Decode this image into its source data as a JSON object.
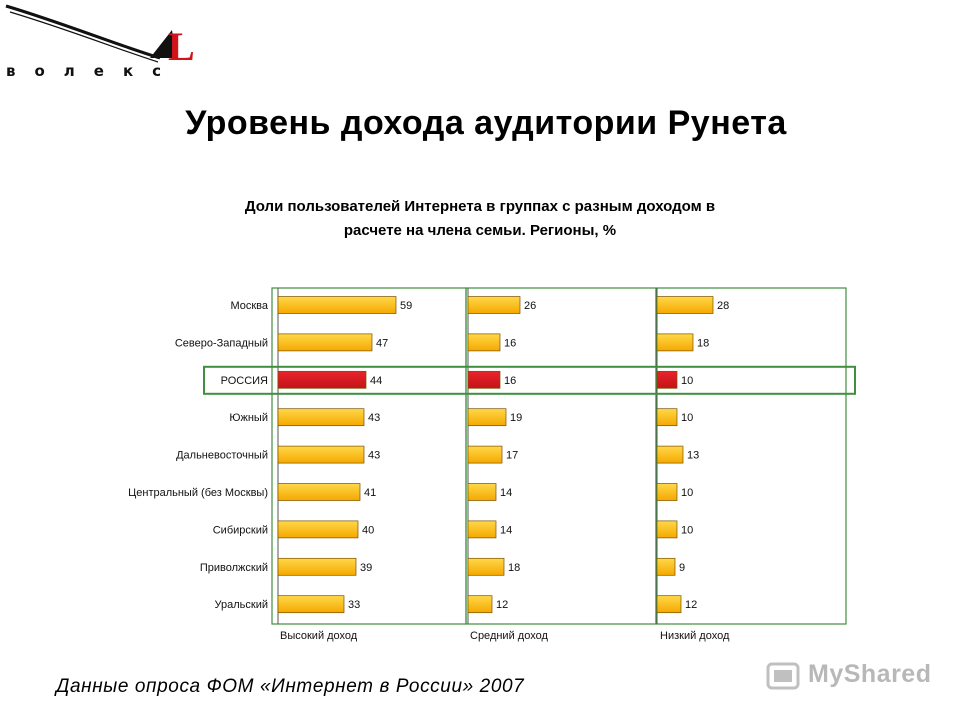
{
  "logo": {
    "text": "волекс",
    "letter": "L"
  },
  "main_title": "Уровень дохода аудитории Рунета",
  "chart_title": [
    "Доли пользователей Интернета в группах с разным доходом в",
    "расчете на члена семьи. Регионы, %"
  ],
  "chart_data": {
    "type": "bar",
    "orientation": "horizontal",
    "categories": [
      "Москва",
      "Северо-Западный",
      "РОССИЯ",
      "Южный",
      "Дальневосточный",
      "Центральный (без Москвы)",
      "Сибирский",
      "Приволжский",
      "Уральский"
    ],
    "highlight_category": "РОССИЯ",
    "series": [
      {
        "name": "Высокий доход",
        "values": [
          59,
          47,
          44,
          43,
          43,
          41,
          40,
          39,
          33
        ]
      },
      {
        "name": "Средний доход",
        "values": [
          26,
          16,
          16,
          19,
          17,
          14,
          14,
          18,
          12
        ]
      },
      {
        "name": "Низкий доход",
        "values": [
          28,
          18,
          10,
          10,
          13,
          10,
          10,
          9,
          12
        ]
      }
    ],
    "colors": {
      "bar": "#f5a800",
      "bar_light": "#ffd84a",
      "highlight": "#c4141a",
      "frame": "#3f8f3f"
    },
    "grid": false
  },
  "caption": "Данные опроса ФОМ «Интернет в России» 2007",
  "watermark": "MyShared"
}
